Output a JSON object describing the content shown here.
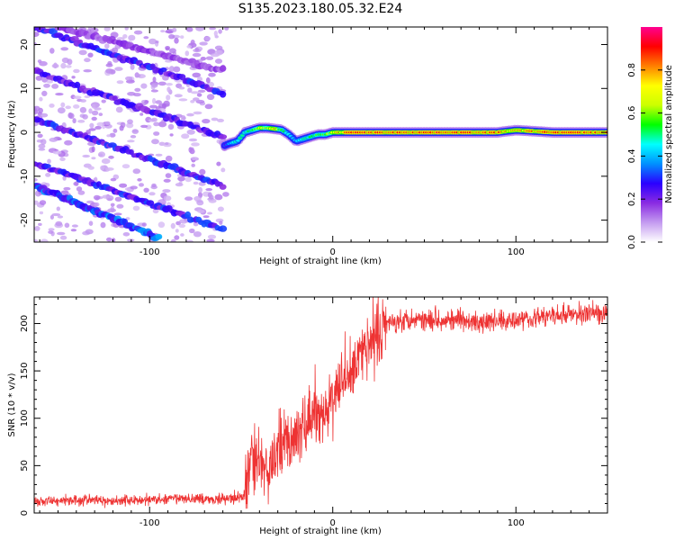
{
  "title": "S135.2023.180.05.32.E24",
  "chart_data": [
    {
      "type": "heatmap",
      "xlabel": "Height of straight line (km)",
      "ylabel": "Frequency (Hz)",
      "xlim": [
        -163,
        150
      ],
      "ylim": [
        -25,
        24
      ],
      "xticks": [
        -100,
        0,
        100
      ],
      "yticks": [
        -20,
        -10,
        0,
        10,
        20
      ],
      "grid": false,
      "colorbar": {
        "label": "Normalized spectral amplitude",
        "range": [
          0,
          1
        ],
        "ticks": [
          0.0,
          0.2,
          0.4,
          0.6,
          0.8
        ],
        "colors": [
          "#ffffff",
          "#c49bf0",
          "#8a2be2",
          "#2a00ff",
          "#0090ff",
          "#00ffff",
          "#00ff00",
          "#ccff00",
          "#ffff00",
          "#ff8000",
          "#ff0000",
          "#ff0090"
        ]
      },
      "tracks": [
        {
          "x": [
            -163,
            -60
          ],
          "y": [
            24,
            9
          ],
          "amplitude": 0.25
        },
        {
          "x": [
            -163,
            -60
          ],
          "y": [
            14,
            -1
          ],
          "amplitude": 0.22
        },
        {
          "x": [
            -163,
            -60
          ],
          "y": [
            3,
            -12
          ],
          "amplitude": 0.25
        },
        {
          "x": [
            -163,
            -60
          ],
          "y": [
            -7,
            -22
          ],
          "amplitude": 0.25
        },
        {
          "x": [
            -163,
            -95
          ],
          "y": [
            -12,
            -24
          ],
          "amplitude": 0.3
        },
        {
          "x": [
            -150,
            -60
          ],
          "y": [
            24,
            14
          ],
          "amplitude": 0.15
        }
      ],
      "ridge": {
        "x": [
          -59,
          -56,
          -52,
          -48,
          -44,
          -40,
          -36,
          -32,
          -28,
          -24,
          -20,
          -16,
          -12,
          -8,
          -4,
          0,
          10,
          30,
          60,
          90,
          100,
          120,
          150
        ],
        "y": [
          -3,
          -2.5,
          -2,
          0,
          0.5,
          1,
          1,
          0.8,
          0.6,
          -0.5,
          -2,
          -1.5,
          -1,
          -0.5,
          -0.5,
          0,
          0,
          0,
          0,
          0,
          0.5,
          0,
          0
        ],
        "amplitude": [
          0.35,
          0.45,
          0.5,
          0.55,
          0.6,
          0.75,
          0.7,
          0.85,
          0.6,
          0.5,
          0.45,
          0.5,
          0.55,
          0.6,
          0.65,
          0.75,
          0.95,
          0.92,
          0.95,
          0.9,
          0.8,
          0.95,
          0.9
        ]
      }
    },
    {
      "type": "line",
      "xlabel": "Height of straight line (km)",
      "ylabel": "SNR (10 * v/v)",
      "xlim": [
        -163,
        150
      ],
      "ylim": [
        0,
        228
      ],
      "xticks": [
        -100,
        0,
        100
      ],
      "yticks": [
        0,
        50,
        100,
        150,
        200
      ],
      "grid": false,
      "series": [
        {
          "color": "#ee3333",
          "x": [
            -163,
            -140,
            -120,
            -100,
            -80,
            -60,
            -48,
            -45,
            -40,
            -35,
            -30,
            -25,
            -20,
            -15,
            -10,
            -5,
            0,
            5,
            10,
            15,
            20,
            25,
            30,
            40,
            60,
            80,
            100,
            120,
            150
          ],
          "y": [
            12,
            14,
            13,
            14,
            15,
            15,
            18,
            60,
            55,
            40,
            65,
            75,
            80,
            95,
            105,
            100,
            120,
            140,
            150,
            165,
            180,
            190,
            200,
            205,
            205,
            200,
            205,
            208,
            212
          ]
        }
      ]
    }
  ]
}
